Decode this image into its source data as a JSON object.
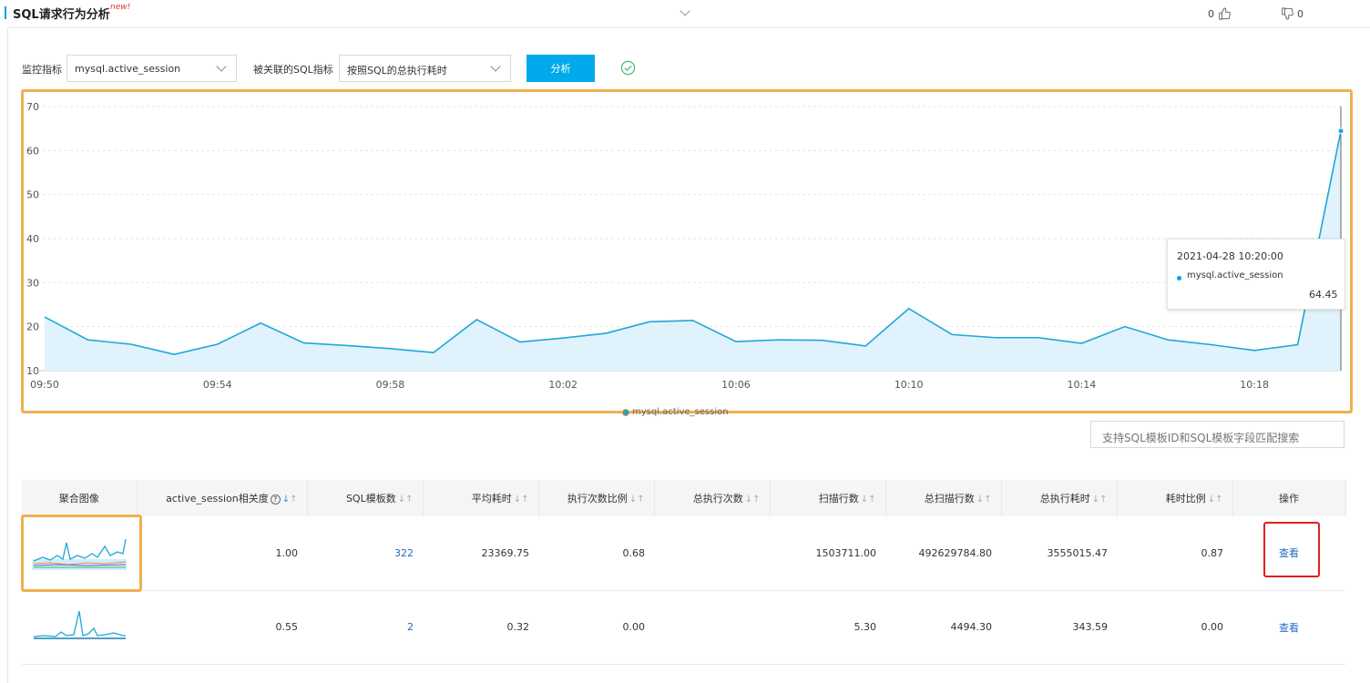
{
  "header": {
    "title": "SQL请求行为分析",
    "badge": "new!",
    "likes": "0",
    "dislikes": "0"
  },
  "controls": {
    "metric_label": "监控指标",
    "metric_value": "mysql.active_session",
    "sql_metric_label": "被关联的SQL指标",
    "sql_metric_value": "按照SQL的总执行耗时",
    "analyze_button": "分析"
  },
  "colors": {
    "accent": "#00aaeb",
    "line": "#1ea7d8",
    "area": "#e0f2fb",
    "highlight_box": "#f0b04f",
    "red_box": "#e02020"
  },
  "chart_data": {
    "type": "area",
    "series": [
      {
        "name": "mysql.active_session",
        "values": [
          22.2,
          17.0,
          16.0,
          13.7,
          16.0,
          20.8,
          16.3,
          15.7,
          15.0,
          14.1,
          21.6,
          16.5,
          17.4,
          18.5,
          21.1,
          21.4,
          16.6,
          17.0,
          16.9,
          15.6,
          24.1,
          18.2,
          17.5,
          17.5,
          16.2,
          20.0,
          17.0,
          15.9,
          14.6,
          15.9,
          64.45
        ]
      }
    ],
    "x": [
      "09:50",
      "09:51",
      "09:52",
      "09:53",
      "09:54",
      "09:55",
      "09:56",
      "09:57",
      "09:58",
      "09:59",
      "10:00",
      "10:01",
      "10:02",
      "10:03",
      "10:04",
      "10:05",
      "10:06",
      "10:07",
      "10:08",
      "10:09",
      "10:10",
      "10:11",
      "10:12",
      "10:13",
      "10:14",
      "10:15",
      "10:16",
      "10:17",
      "10:18",
      "10:19",
      "10:20"
    ],
    "x_tick_labels": [
      "09:50",
      "09:54",
      "09:58",
      "10:02",
      "10:06",
      "10:10",
      "10:14",
      "10:18"
    ],
    "y_ticks": [
      10,
      20,
      30,
      40,
      50,
      60,
      70
    ],
    "ylim": [
      10,
      70
    ],
    "grid": true,
    "legend": "bottom-center",
    "legend_label": "mysql.active_session",
    "tooltip": {
      "time": "2021-04-28 10:20:00",
      "series": "mysql.active_session",
      "value": "64.45"
    }
  },
  "search": {
    "placeholder": "支持SQL模板ID和SQL模板字段匹配搜索"
  },
  "table": {
    "headers": {
      "image": "聚合图像",
      "correlation": "active_session相关度",
      "sql_templates": "SQL模板数",
      "avg_time": "平均耗时",
      "exec_ratio": "执行次数比例",
      "total_exec": "总执行次数",
      "scan_rows": "扫描行数",
      "total_scan": "总扫描行数",
      "total_time": "总执行耗时",
      "time_ratio": "耗时比例",
      "action": "操作"
    },
    "rows": [
      {
        "correlation": "1.00",
        "sql_templates": "322",
        "avg_time": "23369.75",
        "exec_ratio": "0.68",
        "total_exec": "",
        "scan_rows": "1503711.00",
        "total_scan": "492629784.80",
        "total_time": "3555015.47",
        "time_ratio": "0.87",
        "action": "查看"
      },
      {
        "correlation": "0.55",
        "sql_templates": "2",
        "avg_time": "0.32",
        "exec_ratio": "0.00",
        "total_exec": "",
        "scan_rows": "5.30",
        "total_scan": "4494.30",
        "total_time": "343.59",
        "time_ratio": "0.00",
        "action": "查看"
      }
    ]
  }
}
